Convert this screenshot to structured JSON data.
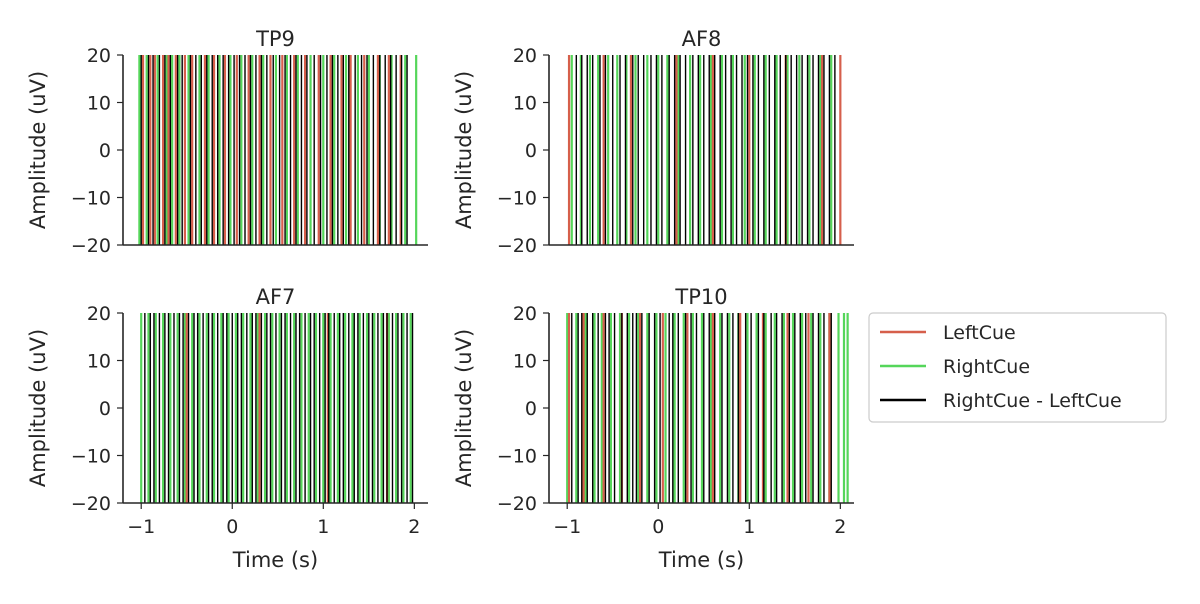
{
  "chart_data": [
    {
      "type": "line",
      "title": "TP9",
      "xlabel": "",
      "ylabel": "Amplitude (uV)",
      "xlim": [
        -1.2,
        2.15
      ],
      "ylim": [
        -20,
        20
      ],
      "xticks": [],
      "yticks": [
        -20,
        -10,
        0,
        10,
        20
      ],
      "series": [
        {
          "name": "LeftCue",
          "color": "#d65f4b",
          "values": [
            -0.98,
            -0.9,
            -0.85,
            -0.76,
            -0.7,
            -0.62,
            -0.52,
            -0.44,
            -0.3,
            -0.2,
            -0.08,
            0.05,
            0.18,
            0.3,
            0.42,
            0.55,
            0.68,
            0.8,
            0.95,
            1.08,
            1.2,
            1.3,
            1.45,
            1.6,
            1.72,
            1.85
          ]
        },
        {
          "name": "RightCue",
          "color": "#55d65a",
          "values": [
            -1.02,
            -0.94,
            -0.82,
            -0.72,
            -0.66,
            -0.58,
            -0.48,
            -0.36,
            -0.26,
            -0.14,
            -0.02,
            0.1,
            0.22,
            0.34,
            0.48,
            0.6,
            0.72,
            0.86,
            1.0,
            1.12,
            1.25,
            1.38,
            1.5,
            1.62,
            1.75,
            1.9,
            2.02
          ]
        },
        {
          "name": "RightCue - LeftCue",
          "color": "#000000",
          "values": [
            -1.0,
            -0.92,
            -0.87,
            -0.8,
            -0.74,
            -0.68,
            -0.6,
            -0.55,
            -0.46,
            -0.4,
            -0.34,
            -0.28,
            -0.22,
            -0.16,
            -0.1,
            -0.04,
            0.02,
            0.08,
            0.14,
            0.2,
            0.26,
            0.32,
            0.38,
            0.45,
            0.52,
            0.58,
            0.64,
            0.7,
            0.76,
            0.82,
            0.9,
            0.97,
            1.04,
            1.1,
            1.16,
            1.22,
            1.28,
            1.35,
            1.42,
            1.48,
            1.55,
            1.62,
            1.68,
            1.74,
            1.8,
            1.86,
            1.92
          ]
        }
      ]
    },
    {
      "type": "line",
      "title": "AF8",
      "xlabel": "",
      "ylabel": "Amplitude (uV)",
      "xlim": [
        -1.2,
        2.15
      ],
      "ylim": [
        -20,
        20
      ],
      "xticks": [],
      "yticks": [
        -20,
        -10,
        0,
        10,
        20
      ],
      "series": [
        {
          "name": "LeftCue",
          "color": "#d65f4b",
          "values": [
            -0.98,
            -0.6,
            -0.3,
            0.2,
            0.6,
            1.0,
            1.4,
            1.8,
            2.0
          ]
        },
        {
          "name": "RightCue",
          "color": "#55d65a",
          "values": [
            -0.95,
            -0.85,
            -0.75,
            -0.66,
            -0.55,
            -0.45,
            -0.35,
            -0.25,
            -0.12,
            0.0,
            0.1,
            0.22,
            0.35,
            0.46,
            0.58,
            0.7,
            0.82,
            0.95,
            1.06,
            1.18,
            1.3,
            1.42,
            1.55,
            1.66,
            1.78,
            1.9
          ]
        },
        {
          "name": "RightCue - LeftCue",
          "color": "#000000",
          "values": [
            -0.9,
            -0.84,
            -0.78,
            -0.72,
            -0.64,
            -0.58,
            -0.5,
            -0.42,
            -0.36,
            -0.28,
            -0.22,
            -0.16,
            -0.08,
            -0.02,
            0.04,
            0.12,
            0.18,
            0.24,
            0.3,
            0.38,
            0.44,
            0.5,
            0.56,
            0.62,
            0.68,
            0.74,
            0.8,
            0.86,
            0.92,
            0.98,
            1.04,
            1.1,
            1.16,
            1.22,
            1.28,
            1.34,
            1.4,
            1.46,
            1.52,
            1.58,
            1.64,
            1.7,
            1.76,
            1.82,
            1.88,
            1.94
          ]
        }
      ]
    },
    {
      "type": "line",
      "title": "AF7",
      "xlabel": "Time (s)",
      "ylabel": "Amplitude (uV)",
      "xlim": [
        -1.2,
        2.15
      ],
      "ylim": [
        -20,
        20
      ],
      "xticks": [
        -1,
        0,
        1,
        2
      ],
      "yticks": [
        -20,
        -10,
        0,
        10,
        20
      ],
      "series": [
        {
          "name": "LeftCue",
          "color": "#d65f4b",
          "values": [
            -0.5,
            0.3,
            1.05,
            1.7
          ]
        },
        {
          "name": "RightCue",
          "color": "#55d65a",
          "values": [
            -1.0,
            -0.92,
            -0.84,
            -0.76,
            -0.68,
            -0.6,
            -0.52,
            -0.44,
            -0.36,
            -0.28,
            -0.2,
            -0.12,
            -0.04,
            0.04,
            0.12,
            0.2,
            0.28,
            0.36,
            0.44,
            0.52,
            0.6,
            0.68,
            0.76,
            0.84,
            0.92,
            1.0,
            1.08,
            1.16,
            1.24,
            1.32,
            1.4,
            1.48,
            1.56,
            1.64,
            1.72,
            1.8,
            1.88,
            1.96
          ]
        },
        {
          "name": "RightCue - LeftCue",
          "color": "#000000",
          "values": [
            -0.96,
            -0.9,
            -0.86,
            -0.8,
            -0.74,
            -0.7,
            -0.64,
            -0.58,
            -0.54,
            -0.48,
            -0.42,
            -0.38,
            -0.32,
            -0.26,
            -0.22,
            -0.16,
            -0.1,
            -0.06,
            0.0,
            0.06,
            0.1,
            0.16,
            0.22,
            0.26,
            0.32,
            0.38,
            0.42,
            0.48,
            0.54,
            0.58,
            0.64,
            0.7,
            0.74,
            0.8,
            0.86,
            0.9,
            0.96,
            1.02,
            1.06,
            1.12,
            1.18,
            1.22,
            1.28,
            1.34,
            1.38,
            1.44,
            1.5,
            1.54,
            1.6,
            1.66,
            1.7,
            1.76,
            1.82,
            1.86,
            1.92,
            1.98
          ]
        }
      ]
    },
    {
      "type": "line",
      "title": "TP10",
      "xlabel": "Time (s)",
      "ylabel": "Amplitude (uV)",
      "xlim": [
        -1.2,
        2.15
      ],
      "ylim": [
        -20,
        20
      ],
      "xticks": [
        -1,
        0,
        1,
        2
      ],
      "yticks": [
        -20,
        -10,
        0,
        10,
        20
      ],
      "series": [
        {
          "name": "LeftCue",
          "color": "#d65f4b",
          "values": [
            -0.98,
            -0.82,
            -0.6,
            -0.4,
            -0.2,
            0.05,
            0.32,
            0.6,
            0.9,
            1.15,
            1.42,
            1.65,
            1.88
          ]
        },
        {
          "name": "RightCue",
          "color": "#55d65a",
          "values": [
            -1.0,
            -0.9,
            -0.8,
            -0.7,
            -0.62,
            -0.52,
            -0.42,
            -0.32,
            -0.22,
            -0.12,
            -0.02,
            0.08,
            0.18,
            0.28,
            0.38,
            0.48,
            0.58,
            0.68,
            0.78,
            0.88,
            0.98,
            1.08,
            1.18,
            1.28,
            1.38,
            1.48,
            1.58,
            1.68,
            1.78,
            1.88,
            1.98,
            2.04,
            2.08
          ]
        },
        {
          "name": "RightCue - LeftCue",
          "color": "#000000",
          "values": [
            -0.95,
            -0.88,
            -0.84,
            -0.78,
            -0.72,
            -0.66,
            -0.58,
            -0.54,
            -0.48,
            -0.4,
            -0.34,
            -0.28,
            -0.24,
            -0.18,
            -0.1,
            -0.04,
            0.02,
            0.12,
            0.16,
            0.22,
            0.3,
            0.36,
            0.42,
            0.5,
            0.56,
            0.62,
            0.7,
            0.76,
            0.82,
            0.88,
            0.96,
            1.02,
            1.1,
            1.16,
            1.24,
            1.3,
            1.36,
            1.44,
            1.5,
            1.56,
            1.62,
            1.7,
            1.76,
            1.82,
            1.9
          ]
        }
      ]
    }
  ],
  "legend": {
    "placement": "right-middle",
    "entries": [
      {
        "label": "LeftCue",
        "color": "#d65f4b"
      },
      {
        "label": "RightCue",
        "color": "#55d65a"
      },
      {
        "label": "RightCue - LeftCue",
        "color": "#000000"
      }
    ]
  }
}
